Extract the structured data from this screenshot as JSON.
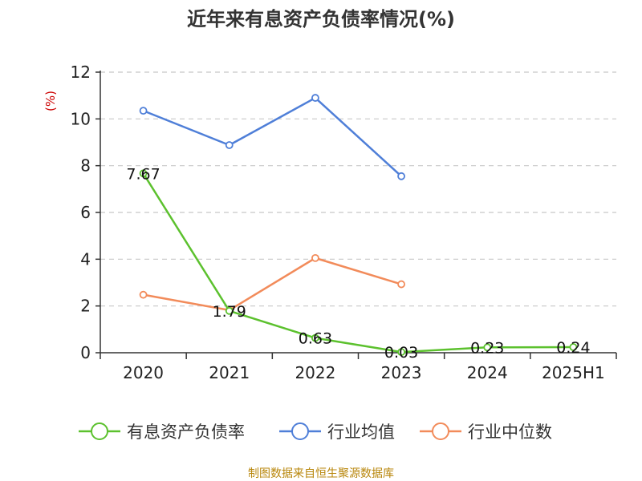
{
  "title": "近年来有息资产负债率情况(%)",
  "source": "制图数据来自恒生聚源数据库",
  "chart_data": {
    "type": "line",
    "title": "近年来有息资产负债率情况(%)",
    "ylabel": "(%)",
    "xlabel": "",
    "categories": [
      "2020",
      "2021",
      "2022",
      "2023",
      "2024",
      "2025H1"
    ],
    "ylim": [
      0,
      12
    ],
    "yticks": [
      0,
      2,
      4,
      6,
      8,
      10,
      12
    ],
    "grid": "horizontal-dashed",
    "legend_position": "bottom",
    "series": [
      {
        "name": "有息资产负债率",
        "color": "#5cc12e",
        "values": [
          7.67,
          1.79,
          0.63,
          0.03,
          0.23,
          0.24
        ],
        "labels": [
          "7.67",
          "1.79",
          "0.63",
          "0.03",
          "0.23",
          "0.24"
        ]
      },
      {
        "name": "行业均值",
        "color": "#4f7fd8",
        "values": [
          10.35,
          8.88,
          10.9,
          7.55,
          null,
          null
        ]
      },
      {
        "name": "行业中位数",
        "color": "#f28b5a",
        "values": [
          2.48,
          1.82,
          4.05,
          2.93,
          null,
          null
        ]
      }
    ]
  }
}
